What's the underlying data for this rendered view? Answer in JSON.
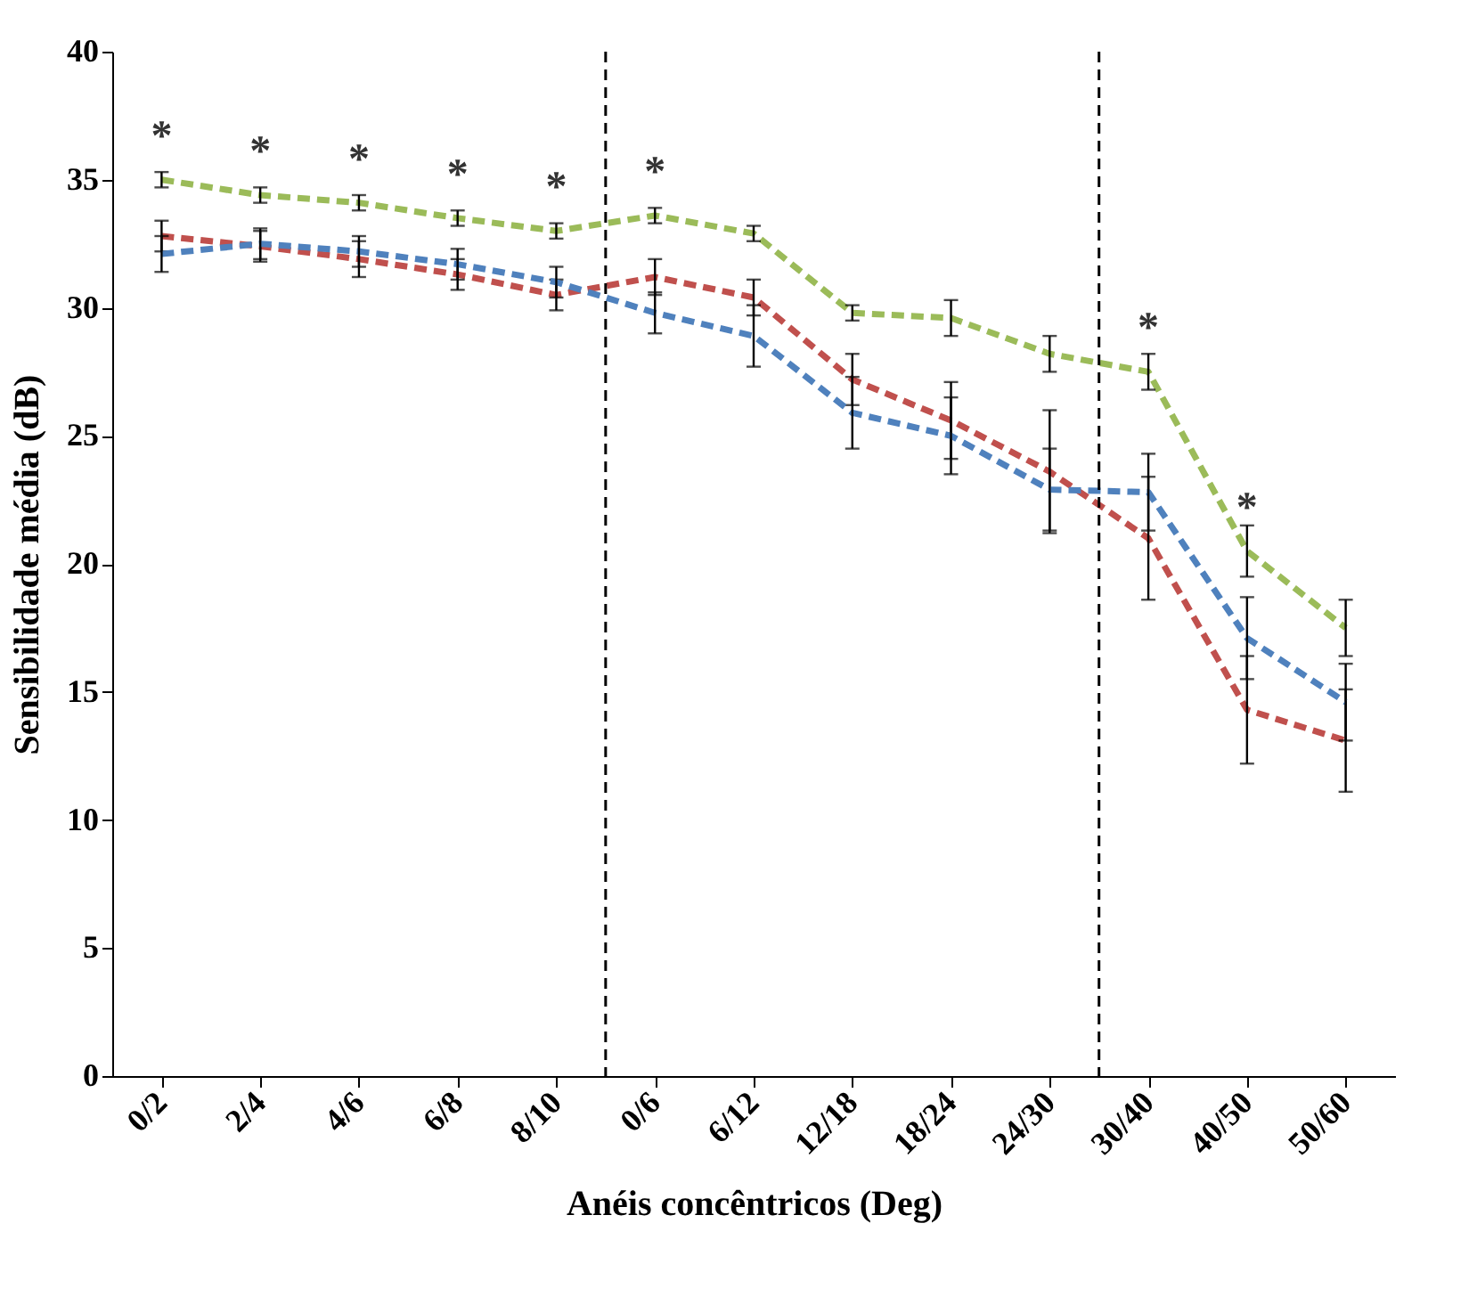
{
  "chart_data": {
    "type": "line",
    "xlabel": "Anéis concêntricos (Deg)",
    "ylabel": "Sensibilidade média  (dB)",
    "categories": [
      "0/2",
      "2/4",
      "4/6",
      "6/8",
      "8/10",
      "0/6",
      "6/12",
      "12/18",
      "18/24",
      "24/30",
      "30/40",
      "40/50",
      "50/60"
    ],
    "ylim": [
      0,
      40
    ],
    "yticks": [
      0,
      5,
      10,
      15,
      20,
      25,
      30,
      35,
      40
    ],
    "line_style": "dashed",
    "grid": false,
    "series": [
      {
        "color": "#9bbb59",
        "values": [
          35.0,
          34.4,
          34.1,
          33.5,
          33.0,
          33.6,
          32.9,
          29.8,
          29.6,
          28.2,
          27.5,
          20.5,
          17.5
        ],
        "errors": [
          0.3,
          0.3,
          0.3,
          0.3,
          0.3,
          0.3,
          0.3,
          0.3,
          0.7,
          0.7,
          0.7,
          1.0,
          1.1
        ]
      },
      {
        "color": "#c0504d",
        "values": [
          32.8,
          32.4,
          31.9,
          31.3,
          30.5,
          31.2,
          30.4,
          27.2,
          25.6,
          23.6,
          21.0,
          14.3,
          13.1
        ],
        "errors": [
          0.6,
          0.6,
          0.7,
          0.6,
          0.6,
          0.7,
          0.7,
          1.0,
          1.5,
          2.4,
          2.4,
          2.1,
          2.0
        ]
      },
      {
        "color": "#4f81bd",
        "values": [
          32.1,
          32.5,
          32.2,
          31.7,
          31.0,
          29.8,
          28.9,
          25.9,
          25.0,
          22.9,
          22.8,
          17.1,
          14.6
        ],
        "errors": [
          0.7,
          0.6,
          0.6,
          0.6,
          0.6,
          0.8,
          1.2,
          1.4,
          1.5,
          1.6,
          1.5,
          1.6,
          1.5
        ]
      }
    ],
    "annotations": [
      {
        "text": "*",
        "x": "0/2",
        "y": 35.0
      },
      {
        "text": "*",
        "x": "2/4",
        "y": 34.4
      },
      {
        "text": "*",
        "x": "4/6",
        "y": 34.1
      },
      {
        "text": "*",
        "x": "6/8",
        "y": 33.5
      },
      {
        "text": "*",
        "x": "8/10",
        "y": 33.0
      },
      {
        "text": "*",
        "x": "0/6",
        "y": 33.6
      },
      {
        "text": "*",
        "x": "30/40",
        "y": 27.5
      },
      {
        "text": "*",
        "x": "40/50",
        "y": 20.5
      }
    ]
  }
}
